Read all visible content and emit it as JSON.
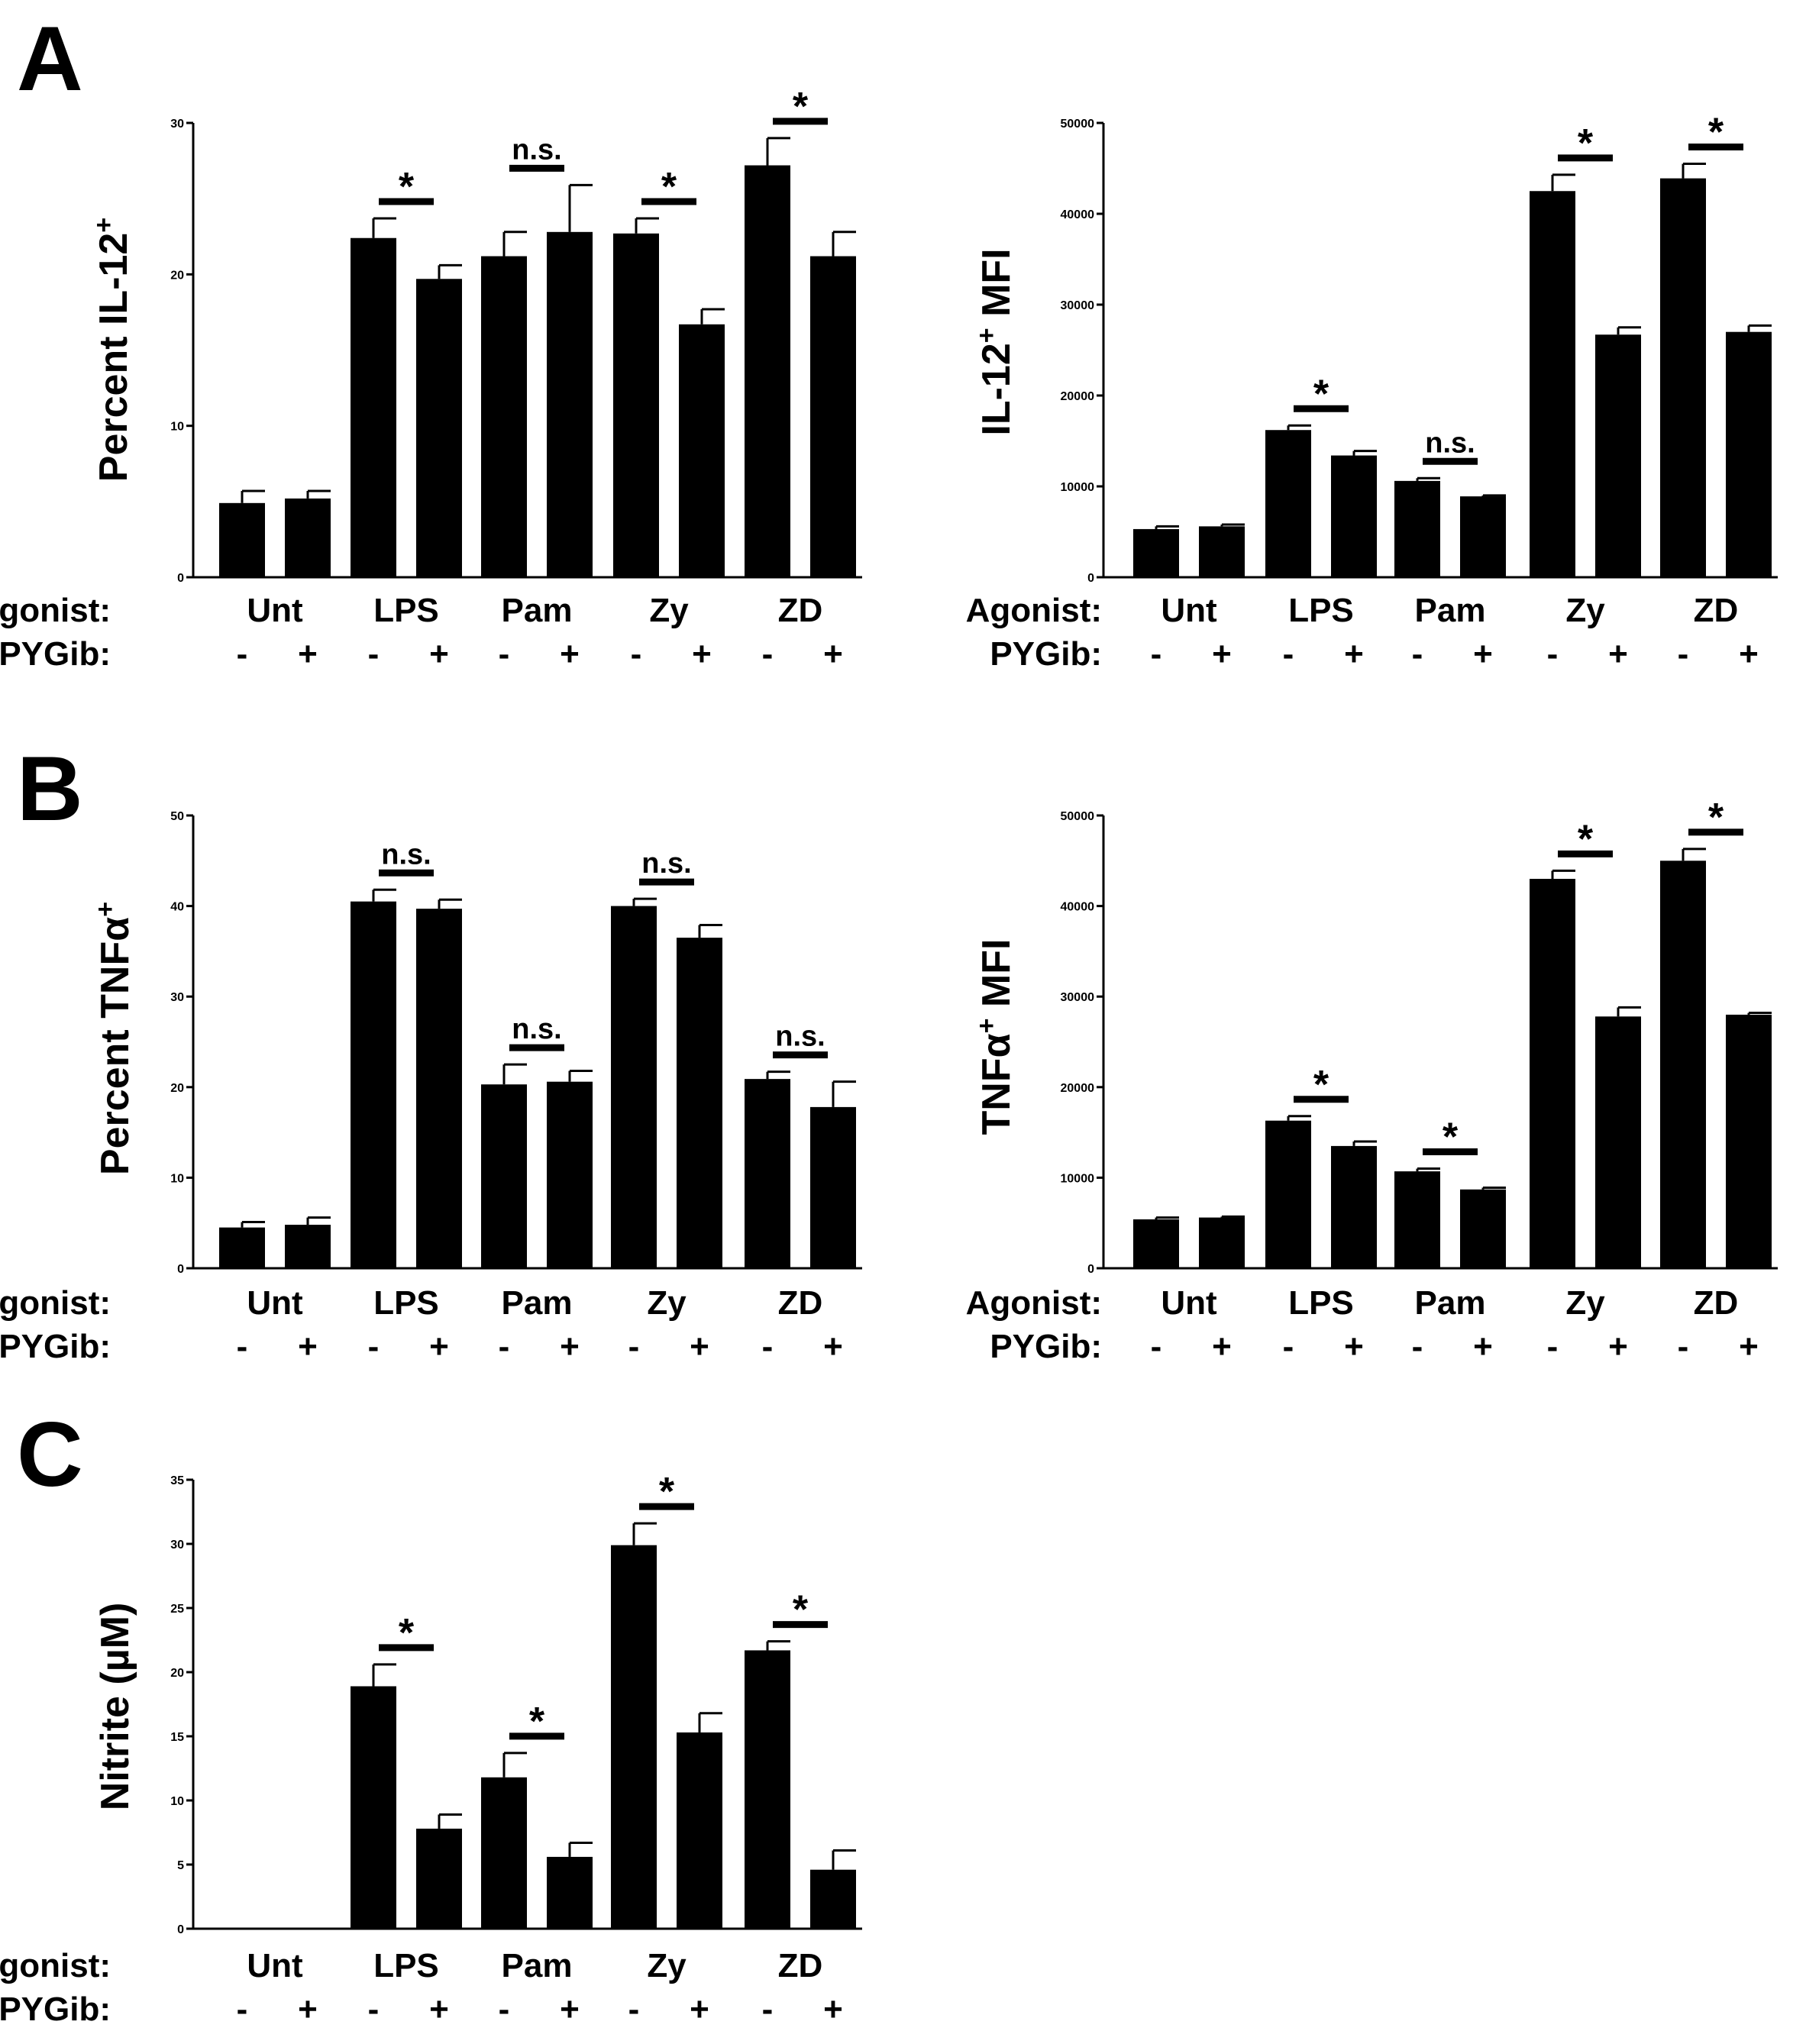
{
  "figure": {
    "panel_labels": [
      "A",
      "B",
      "C"
    ],
    "row_labels": {
      "agonist": "Agonist:",
      "inhibitor": "PYGib:"
    },
    "inhibitor_signs": [
      "-",
      "+"
    ]
  },
  "colors": {
    "bar": "#000000",
    "axis": "#000000",
    "text": "#000000"
  },
  "chart_data": [
    {
      "id": "A-left",
      "panel": "A",
      "type": "bar",
      "ylabel": "Percent IL-12",
      "ylabel_sup": "+",
      "ylabel_suffix": "",
      "ylim": [
        0,
        30
      ],
      "yticks": [
        0,
        10,
        20,
        30
      ],
      "categories": [
        "Unt",
        "LPS",
        "Pam",
        "Zy",
        "ZD"
      ],
      "series": [
        {
          "name": "-",
          "values": [
            4.9,
            22.4,
            21.2,
            22.7,
            27.2
          ],
          "errors": [
            0.8,
            1.3,
            1.6,
            1.0,
            1.8
          ]
        },
        {
          "name": "+",
          "values": [
            5.2,
            19.7,
            22.8,
            16.7,
            21.2
          ],
          "errors": [
            0.5,
            0.9,
            3.1,
            1.0,
            1.6
          ]
        }
      ],
      "significance": [
        {
          "category": "LPS",
          "label": "*"
        },
        {
          "category": "Pam",
          "label": "n.s."
        },
        {
          "category": "Zy",
          "label": "*"
        },
        {
          "category": "ZD",
          "label": "*"
        }
      ]
    },
    {
      "id": "A-right",
      "panel": "A",
      "type": "bar",
      "ylabel": "IL-12",
      "ylabel_sup": "+",
      "ylabel_suffix": " MFI",
      "ylim": [
        0,
        50000
      ],
      "yticks": [
        0,
        10000,
        20000,
        30000,
        40000,
        50000
      ],
      "categories": [
        "Unt",
        "LPS",
        "Pam",
        "Zy",
        "ZD"
      ],
      "series": [
        {
          "name": "-",
          "values": [
            5300,
            16200,
            10600,
            42500,
            43900
          ],
          "errors": [
            300,
            500,
            300,
            1800,
            1600
          ]
        },
        {
          "name": "+",
          "values": [
            5600,
            13400,
            8900,
            26700,
            27000
          ],
          "errors": [
            200,
            500,
            100,
            800,
            700
          ]
        }
      ],
      "significance": [
        {
          "category": "LPS",
          "label": "*"
        },
        {
          "category": "Pam",
          "label": "n.s."
        },
        {
          "category": "Zy",
          "label": "*"
        },
        {
          "category": "ZD",
          "label": "*"
        }
      ]
    },
    {
      "id": "B-left",
      "panel": "B",
      "type": "bar",
      "ylabel": "Percent TNFα",
      "ylabel_sup": "+",
      "ylabel_suffix": "",
      "ylim": [
        0,
        50
      ],
      "yticks": [
        0,
        10,
        20,
        30,
        40,
        50
      ],
      "categories": [
        "Unt",
        "LPS",
        "Pam",
        "Zy",
        "ZD"
      ],
      "series": [
        {
          "name": "-",
          "values": [
            4.5,
            40.5,
            20.3,
            40.0,
            20.9
          ],
          "errors": [
            0.6,
            1.3,
            2.2,
            0.8,
            0.8
          ]
        },
        {
          "name": "+",
          "values": [
            4.8,
            39.7,
            20.6,
            36.5,
            17.8
          ],
          "errors": [
            0.8,
            1.0,
            1.2,
            1.4,
            2.8
          ]
        }
      ],
      "significance": [
        {
          "category": "LPS",
          "label": "n.s."
        },
        {
          "category": "Pam",
          "label": "n.s."
        },
        {
          "category": "Zy",
          "label": "n.s."
        },
        {
          "category": "ZD",
          "label": "n.s."
        }
      ]
    },
    {
      "id": "B-right",
      "panel": "B",
      "type": "bar",
      "ylabel": "TNFα",
      "ylabel_sup": "+",
      "ylabel_suffix": " MFI",
      "ylim": [
        0,
        50000
      ],
      "yticks": [
        0,
        10000,
        20000,
        30000,
        40000,
        50000
      ],
      "categories": [
        "Unt",
        "LPS",
        "Pam",
        "Zy",
        "ZD"
      ],
      "series": [
        {
          "name": "-",
          "values": [
            5400,
            16300,
            10700,
            43000,
            45000
          ],
          "errors": [
            200,
            500,
            300,
            900,
            1300
          ]
        },
        {
          "name": "+",
          "values": [
            5600,
            13500,
            8700,
            27800,
            28000
          ],
          "errors": [
            100,
            500,
            200,
            1000,
            200
          ]
        }
      ],
      "significance": [
        {
          "category": "LPS",
          "label": "*"
        },
        {
          "category": "Pam",
          "label": "*"
        },
        {
          "category": "Zy",
          "label": "*"
        },
        {
          "category": "ZD",
          "label": "*"
        }
      ]
    },
    {
      "id": "C-left",
      "panel": "C",
      "type": "bar",
      "ylabel": "Nitrite (µM)",
      "ylabel_sup": "",
      "ylabel_suffix": "",
      "ylim": [
        0,
        35
      ],
      "yticks": [
        0,
        5,
        10,
        15,
        20,
        25,
        30,
        35
      ],
      "categories": [
        "Unt",
        "LPS",
        "Pam",
        "Zy",
        "ZD"
      ],
      "series": [
        {
          "name": "-",
          "values": [
            0,
            18.9,
            11.8,
            29.9,
            21.7
          ],
          "errors": [
            0,
            1.7,
            1.9,
            1.7,
            0.7
          ]
        },
        {
          "name": "+",
          "values": [
            0,
            7.8,
            5.6,
            15.3,
            4.6
          ],
          "errors": [
            0,
            1.1,
            1.1,
            1.5,
            1.5
          ]
        }
      ],
      "significance": [
        {
          "category": "LPS",
          "label": "*"
        },
        {
          "category": "Pam",
          "label": "*"
        },
        {
          "category": "Zy",
          "label": "*"
        },
        {
          "category": "ZD",
          "label": "*"
        }
      ]
    }
  ]
}
